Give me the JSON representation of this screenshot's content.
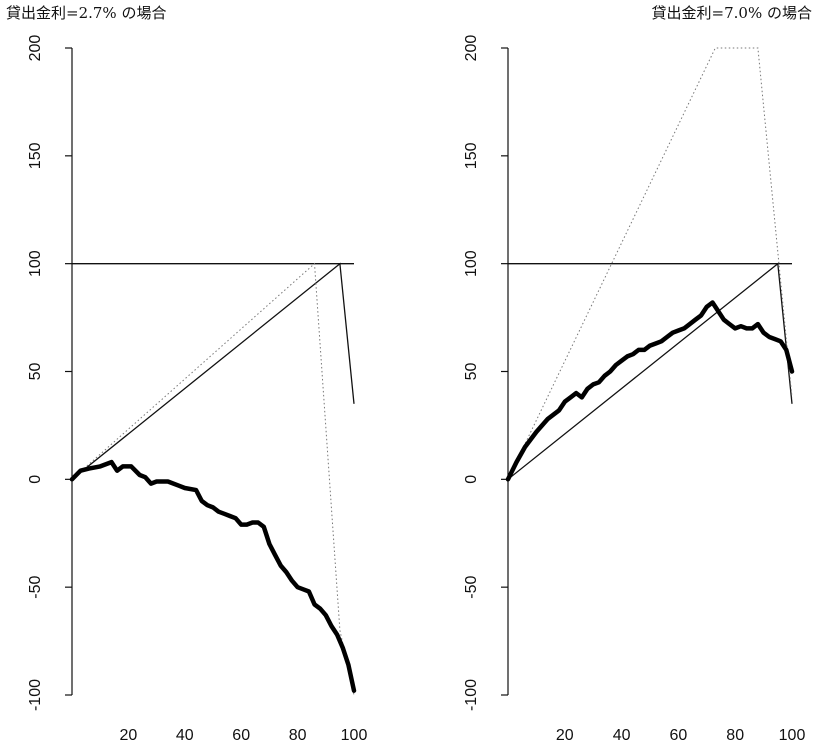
{
  "chart_data": [
    {
      "type": "line",
      "title": "貸出金利=2.7% の場合",
      "xlim": [
        0,
        100
      ],
      "ylim": [
        -100,
        200
      ],
      "x_ticks": [
        20,
        40,
        60,
        80,
        100
      ],
      "y_ticks": [
        -100,
        -50,
        0,
        50,
        100,
        150,
        200
      ],
      "grid": false,
      "series": [
        {
          "x": [
            0,
            95,
            100
          ],
          "y": [
            0,
            100,
            35
          ],
          "style": "thin-solid"
        },
        {
          "x": [
            0,
            100
          ],
          "y": [
            100,
            100
          ],
          "style": "thin-solid"
        },
        {
          "x": [
            0,
            86,
            95,
            100
          ],
          "y": [
            0,
            100,
            -70,
            -100
          ],
          "style": "dotted"
        },
        {
          "x": [
            0,
            3,
            6,
            10,
            14,
            16,
            18,
            21,
            24,
            26,
            28,
            30,
            34,
            38,
            40,
            44,
            46,
            48,
            50,
            52,
            54,
            56,
            58,
            60,
            62,
            64,
            66,
            68,
            70,
            72,
            74,
            76,
            78,
            80,
            82,
            84,
            86,
            88,
            90,
            92,
            94,
            96,
            98,
            100
          ],
          "y": [
            0,
            4,
            5,
            6,
            8,
            4,
            6,
            6,
            2,
            1,
            -2,
            -1,
            -1,
            -3,
            -4,
            -5,
            -10,
            -12,
            -13,
            -15,
            -16,
            -17,
            -18,
            -21,
            -21,
            -20,
            -20,
            -22,
            -30,
            -35,
            -40,
            -43,
            -47,
            -50,
            -51,
            -52,
            -58,
            -60,
            -63,
            -68,
            -72,
            -78,
            -86,
            -98
          ],
          "style": "thick-solid"
        }
      ]
    },
    {
      "type": "line",
      "title": "貸出金利=7.0% の場合",
      "xlim": [
        0,
        100
      ],
      "ylim": [
        -100,
        200
      ],
      "x_ticks": [
        20,
        40,
        60,
        80,
        100
      ],
      "y_ticks": [
        -100,
        -50,
        0,
        50,
        100,
        150,
        200
      ],
      "grid": false,
      "series": [
        {
          "x": [
            0,
            95,
            100
          ],
          "y": [
            0,
            100,
            35
          ],
          "style": "thin-solid"
        },
        {
          "x": [
            0,
            100
          ],
          "y": [
            100,
            100
          ],
          "style": "thin-solid"
        },
        {
          "x": [
            0,
            73,
            88,
            100
          ],
          "y": [
            0,
            200,
            200,
            38
          ],
          "style": "dotted"
        },
        {
          "x": [
            0,
            3,
            6,
            10,
            14,
            18,
            20,
            22,
            24,
            26,
            28,
            30,
            32,
            34,
            36,
            38,
            40,
            42,
            44,
            46,
            48,
            50,
            52,
            54,
            56,
            58,
            60,
            62,
            64,
            66,
            68,
            70,
            72,
            74,
            76,
            78,
            80,
            82,
            84,
            86,
            88,
            90,
            92,
            94,
            96,
            98,
            100
          ],
          "y": [
            0,
            8,
            15,
            22,
            28,
            32,
            36,
            38,
            40,
            38,
            42,
            44,
            45,
            48,
            50,
            53,
            55,
            57,
            58,
            60,
            60,
            62,
            63,
            64,
            66,
            68,
            69,
            70,
            72,
            74,
            76,
            80,
            82,
            78,
            74,
            72,
            70,
            71,
            70,
            70,
            72,
            68,
            66,
            65,
            64,
            60,
            50
          ],
          "style": "thick-solid"
        }
      ]
    }
  ]
}
